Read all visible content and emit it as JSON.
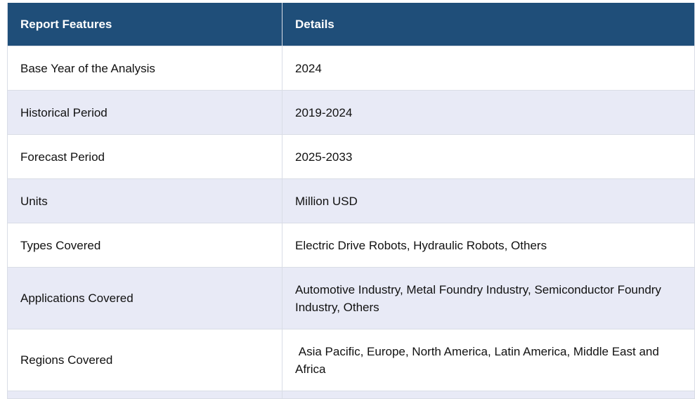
{
  "table": {
    "headers": [
      "Report Features",
      "Details"
    ],
    "rows": [
      {
        "feature": "Base Year of the Analysis",
        "details": "2024"
      },
      {
        "feature": "Historical Period",
        "details": "2019-2024"
      },
      {
        "feature": "Forecast Period",
        "details": "2025-2033"
      },
      {
        "feature": "Units",
        "details": "Million USD"
      },
      {
        "feature": "Types Covered",
        "details": "Electric Drive Robots, Hydraulic Robots, Others"
      },
      {
        "feature": "Applications Covered",
        "details": "Automotive Industry, Metal Foundry Industry, Semiconductor Foundry Industry, Others"
      },
      {
        "feature": "Regions Covered",
        "details": " Asia Pacific, Europe, North America, Latin America, Middle East and Africa"
      }
    ]
  },
  "colors": {
    "header_bg": "#1f4e79",
    "header_text": "#ffffff",
    "stripe_bg": "#e8eaf6",
    "border": "#d9dde6"
  }
}
